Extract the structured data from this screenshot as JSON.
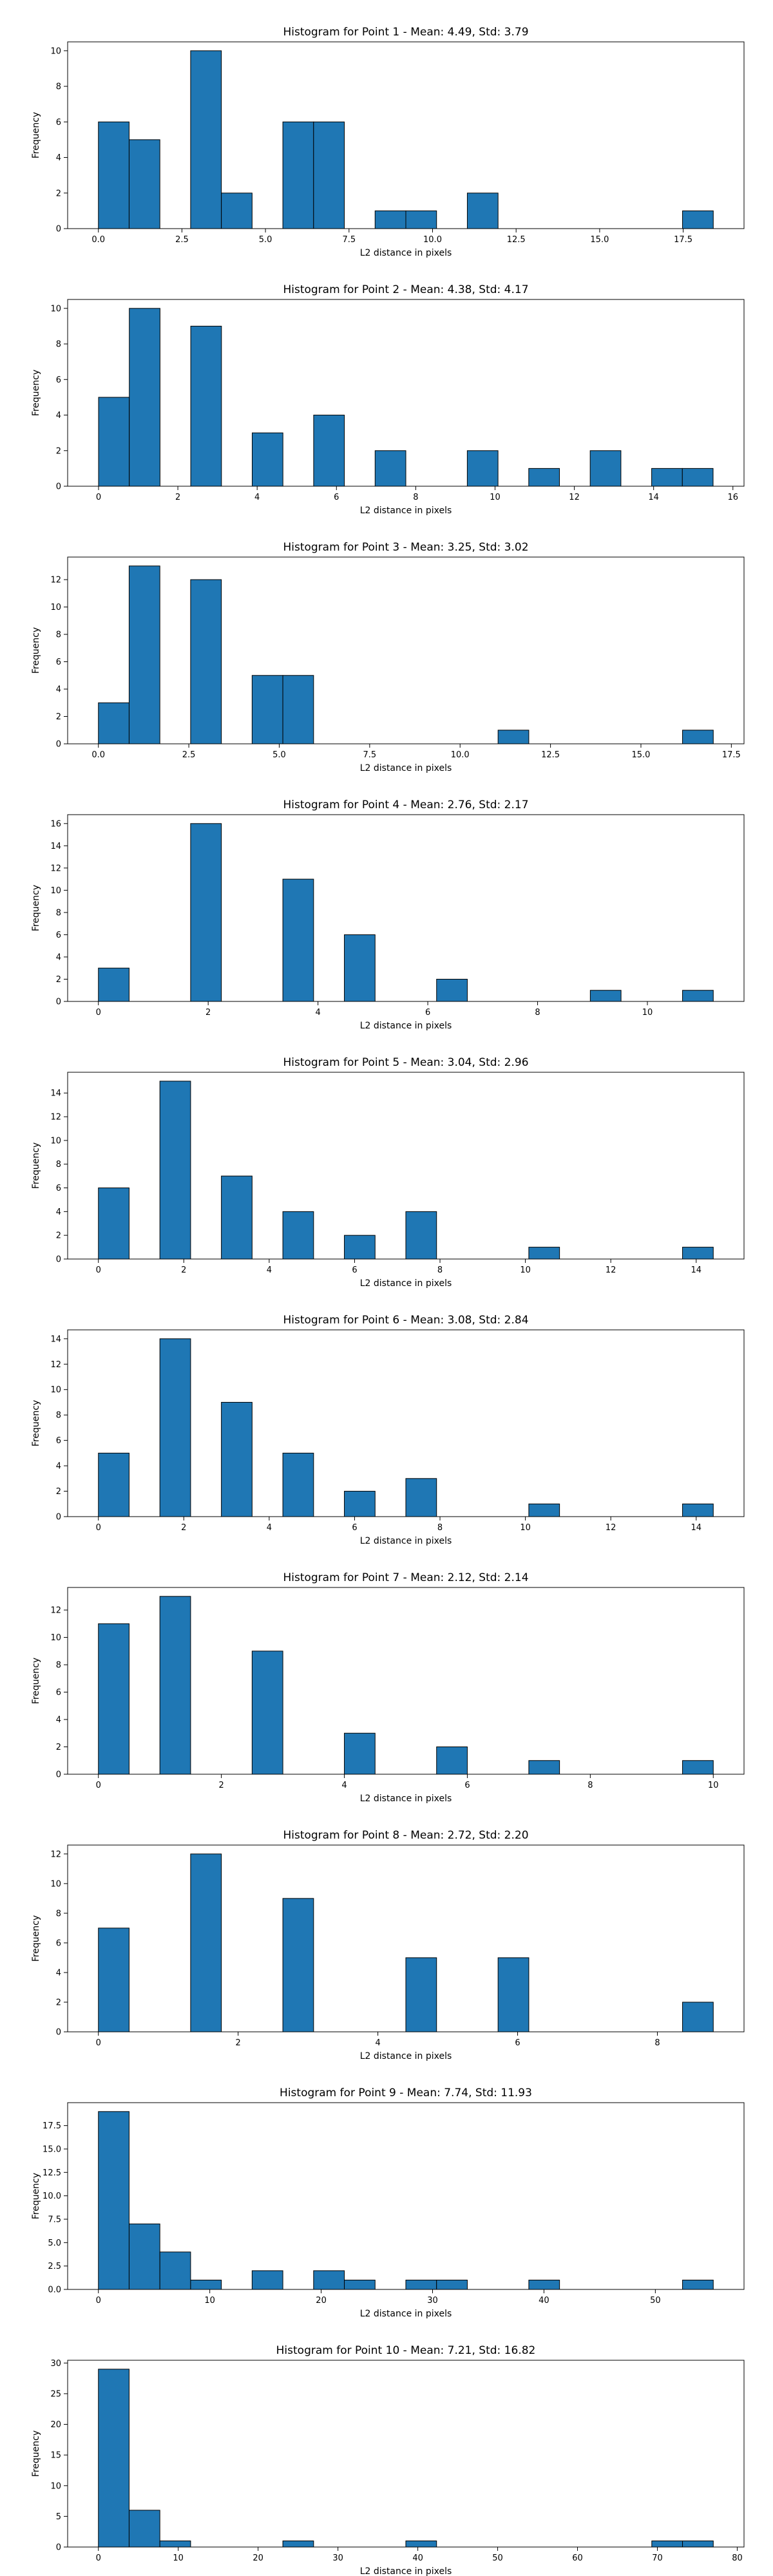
{
  "figure": {
    "bar_color": "#1f77b4",
    "edge_color": "#000000"
  },
  "chart_data": [
    {
      "type": "bar",
      "title": "Histogram for Point 1 - Mean: 4.49, Std: 3.79",
      "xlabel": "L2 distance in pixels",
      "ylabel": "Frequency",
      "xlim": [
        -0.92,
        19.32
      ],
      "ylim": [
        0,
        10.5
      ],
      "xticks": [
        0.0,
        2.5,
        5.0,
        7.5,
        10.0,
        12.5,
        15.0,
        17.5
      ],
      "xtick_labels": [
        "0.0",
        "2.5",
        "5.0",
        "7.5",
        "10.0",
        "12.5",
        "15.0",
        "17.5"
      ],
      "yticks": [
        0,
        2,
        4,
        6,
        8,
        10
      ],
      "ytick_labels": [
        "0",
        "2",
        "4",
        "6",
        "8",
        "10"
      ],
      "bin_start": 0.0,
      "bin_width": 0.92,
      "counts": [
        6,
        5,
        0,
        10,
        2,
        0,
        6,
        6,
        0,
        1,
        1,
        0,
        2,
        0,
        0,
        0,
        0,
        0,
        0,
        1
      ]
    },
    {
      "type": "bar",
      "title": "Histogram for Point 2 - Mean: 4.38, Std: 4.17",
      "xlabel": "L2 distance in pixels",
      "ylabel": "Frequency",
      "xlim": [
        -0.78,
        16.28
      ],
      "ylim": [
        0,
        10.5
      ],
      "xticks": [
        0,
        2,
        4,
        6,
        8,
        10,
        12,
        14,
        16
      ],
      "xtick_labels": [
        "0",
        "2",
        "4",
        "6",
        "8",
        "10",
        "12",
        "14",
        "16"
      ],
      "yticks": [
        0,
        2,
        4,
        6,
        8,
        10
      ],
      "ytick_labels": [
        "0",
        "2",
        "4",
        "6",
        "8",
        "10"
      ],
      "bin_start": 0.0,
      "bin_width": 0.775,
      "counts": [
        5,
        10,
        0,
        9,
        0,
        3,
        0,
        4,
        0,
        2,
        0,
        0,
        2,
        0,
        1,
        0,
        2,
        0,
        1,
        1
      ]
    },
    {
      "type": "bar",
      "title": "Histogram for Point 3 - Mean: 3.25, Std: 3.02",
      "xlabel": "L2 distance in pixels",
      "ylabel": "Frequency",
      "xlim": [
        -0.85,
        17.85
      ],
      "ylim": [
        0,
        13.65
      ],
      "xticks": [
        0.0,
        2.5,
        5.0,
        7.5,
        10.0,
        12.5,
        15.0,
        17.5
      ],
      "xtick_labels": [
        "0.0",
        "2.5",
        "5.0",
        "7.5",
        "10.0",
        "12.5",
        "15.0",
        "17.5"
      ],
      "yticks": [
        0,
        2,
        4,
        6,
        8,
        10,
        12
      ],
      "ytick_labels": [
        "0",
        "2",
        "4",
        "6",
        "8",
        "10",
        "12"
      ],
      "bin_start": 0.0,
      "bin_width": 0.85,
      "counts": [
        3,
        13,
        0,
        12,
        0,
        5,
        5,
        0,
        0,
        0,
        0,
        0,
        0,
        1,
        0,
        0,
        0,
        0,
        0,
        1
      ]
    },
    {
      "type": "bar",
      "title": "Histogram for Point 4 - Mean: 2.76, Std: 2.17",
      "xlabel": "L2 distance in pixels",
      "ylabel": "Frequency",
      "xlim": [
        -0.56,
        11.76
      ],
      "ylim": [
        0,
        16.8
      ],
      "xticks": [
        0,
        2,
        4,
        6,
        8,
        10
      ],
      "xtick_labels": [
        "0",
        "2",
        "4",
        "6",
        "8",
        "10"
      ],
      "yticks": [
        0,
        2,
        4,
        6,
        8,
        10,
        12,
        14,
        16
      ],
      "ytick_labels": [
        "0",
        "2",
        "4",
        "6",
        "8",
        "10",
        "12",
        "14",
        "16"
      ],
      "bin_start": 0.0,
      "bin_width": 0.56,
      "counts": [
        3,
        0,
        0,
        16,
        0,
        0,
        11,
        0,
        6,
        0,
        0,
        2,
        0,
        0,
        0,
        0,
        1,
        0,
        0,
        1
      ]
    },
    {
      "type": "bar",
      "title": "Histogram for Point 5 - Mean: 3.04, Std: 2.96",
      "xlabel": "L2 distance in pixels",
      "ylabel": "Frequency",
      "xlim": [
        -0.72,
        15.12
      ],
      "ylim": [
        0,
        15.75
      ],
      "xticks": [
        0,
        2,
        4,
        6,
        8,
        10,
        12,
        14
      ],
      "xtick_labels": [
        "0",
        "2",
        "4",
        "6",
        "8",
        "10",
        "12",
        "14"
      ],
      "yticks": [
        0,
        2,
        4,
        6,
        8,
        10,
        12,
        14
      ],
      "ytick_labels": [
        "0",
        "2",
        "4",
        "6",
        "8",
        "10",
        "12",
        "14"
      ],
      "bin_start": 0.0,
      "bin_width": 0.72,
      "counts": [
        6,
        0,
        15,
        0,
        7,
        0,
        4,
        0,
        2,
        0,
        4,
        0,
        0,
        0,
        1,
        0,
        0,
        0,
        0,
        1
      ]
    },
    {
      "type": "bar",
      "title": "Histogram for Point 6 - Mean: 3.08, Std: 2.84",
      "xlabel": "L2 distance in pixels",
      "ylabel": "Frequency",
      "xlim": [
        -0.72,
        15.12
      ],
      "ylim": [
        0,
        14.7
      ],
      "xticks": [
        0,
        2,
        4,
        6,
        8,
        10,
        12,
        14
      ],
      "xtick_labels": [
        "0",
        "2",
        "4",
        "6",
        "8",
        "10",
        "12",
        "14"
      ],
      "yticks": [
        0,
        2,
        4,
        6,
        8,
        10,
        12,
        14
      ],
      "ytick_labels": [
        "0",
        "2",
        "4",
        "6",
        "8",
        "10",
        "12",
        "14"
      ],
      "bin_start": 0.0,
      "bin_width": 0.72,
      "counts": [
        5,
        0,
        14,
        0,
        9,
        0,
        5,
        0,
        2,
        0,
        3,
        0,
        0,
        0,
        1,
        0,
        0,
        0,
        0,
        1
      ]
    },
    {
      "type": "bar",
      "title": "Histogram for Point 7 - Mean: 2.12, Std: 2.14",
      "xlabel": "L2 distance in pixels",
      "ylabel": "Frequency",
      "xlim": [
        -0.5,
        10.5
      ],
      "ylim": [
        0,
        13.65
      ],
      "xticks": [
        0,
        2,
        4,
        6,
        8,
        10
      ],
      "xtick_labels": [
        "0",
        "2",
        "4",
        "6",
        "8",
        "10"
      ],
      "yticks": [
        0,
        2,
        4,
        6,
        8,
        10,
        12
      ],
      "ytick_labels": [
        "0",
        "2",
        "4",
        "6",
        "8",
        "10",
        "12"
      ],
      "bin_start": 0.0,
      "bin_width": 0.5,
      "counts": [
        11,
        0,
        13,
        0,
        0,
        9,
        0,
        0,
        3,
        0,
        0,
        2,
        0,
        0,
        1,
        0,
        0,
        0,
        0,
        1
      ]
    },
    {
      "type": "bar",
      "title": "Histogram for Point 8 - Mean: 2.72, Std: 2.20",
      "xlabel": "L2 distance in pixels",
      "ylabel": "Frequency",
      "xlim": [
        -0.44,
        9.24
      ],
      "ylim": [
        0,
        12.6
      ],
      "xticks": [
        0,
        2,
        4,
        6,
        8
      ],
      "xtick_labels": [
        "0",
        "2",
        "4",
        "6",
        "8"
      ],
      "yticks": [
        0,
        2,
        4,
        6,
        8,
        10,
        12
      ],
      "ytick_labels": [
        "0",
        "2",
        "4",
        "6",
        "8",
        "10",
        "12"
      ],
      "bin_start": 0.0,
      "bin_width": 0.44,
      "counts": [
        7,
        0,
        0,
        12,
        0,
        0,
        9,
        0,
        0,
        0,
        5,
        0,
        0,
        5,
        0,
        0,
        0,
        0,
        0,
        2
      ]
    },
    {
      "type": "bar",
      "title": "Histogram for Point 9 - Mean: 7.74, Std: 11.93",
      "xlabel": "L2 distance in pixels",
      "ylabel": "Frequency",
      "xlim": [
        -2.76,
        57.96
      ],
      "ylim": [
        0,
        19.95
      ],
      "xticks": [
        0,
        10,
        20,
        30,
        40,
        50
      ],
      "xtick_labels": [
        "0",
        "10",
        "20",
        "30",
        "40",
        "50"
      ],
      "yticks": [
        0.0,
        2.5,
        5.0,
        7.5,
        10.0,
        12.5,
        15.0,
        17.5
      ],
      "ytick_labels": [
        "0.0",
        "2.5",
        "5.0",
        "7.5",
        "10.0",
        "12.5",
        "15.0",
        "17.5"
      ],
      "bin_start": 0.0,
      "bin_width": 2.76,
      "counts": [
        19,
        7,
        4,
        1,
        0,
        2,
        0,
        2,
        1,
        0,
        1,
        1,
        0,
        0,
        1,
        0,
        0,
        0,
        0,
        1
      ]
    },
    {
      "type": "bar",
      "title": "Histogram for Point 10 - Mean: 7.21, Std: 16.82",
      "xlabel": "L2 distance in pixels",
      "ylabel": "Frequency",
      "xlim": [
        -3.85,
        80.85
      ],
      "ylim": [
        0,
        30.45
      ],
      "xticks": [
        0,
        10,
        20,
        30,
        40,
        50,
        60,
        70,
        80
      ],
      "xtick_labels": [
        "0",
        "10",
        "20",
        "30",
        "40",
        "50",
        "60",
        "70",
        "80"
      ],
      "yticks": [
        0,
        5,
        10,
        15,
        20,
        25,
        30
      ],
      "ytick_labels": [
        "0",
        "5",
        "10",
        "15",
        "20",
        "25",
        "30"
      ],
      "bin_start": 0.0,
      "bin_width": 3.85,
      "counts": [
        29,
        6,
        1,
        0,
        0,
        0,
        1,
        0,
        0,
        0,
        1,
        0,
        0,
        0,
        0,
        0,
        0,
        0,
        1,
        1
      ]
    }
  ]
}
